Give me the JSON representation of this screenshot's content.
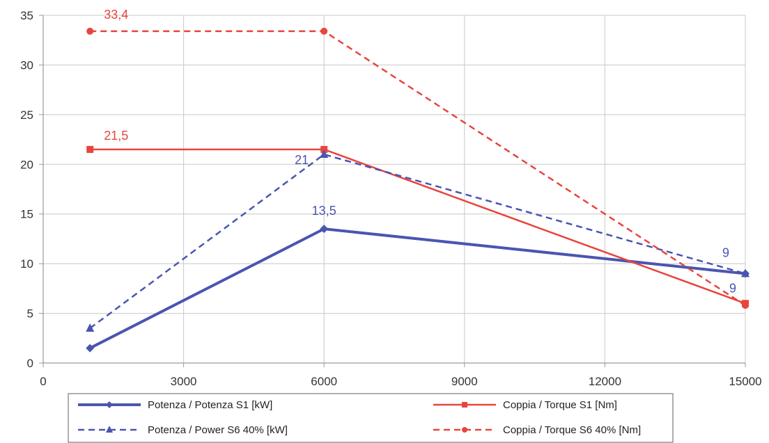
{
  "chart_data": {
    "type": "line",
    "xlim": [
      0,
      15000
    ],
    "ylim": [
      0,
      35
    ],
    "x_ticks": [
      "0",
      "3000",
      "6000",
      "9000",
      "12000",
      "15000"
    ],
    "y_ticks": [
      "0",
      "5",
      "10",
      "15",
      "20",
      "25",
      "30",
      "35"
    ],
    "grid": true,
    "legend_position": "bottom",
    "series": [
      {
        "name": "Potenza / Potenza S1 [kW]",
        "x": [
          1000,
          6000,
          15000
        ],
        "values": [
          1.5,
          13.5,
          9
        ],
        "color": "#4a55b0",
        "dash": "solid",
        "marker": "diamond",
        "width": 4
      },
      {
        "name": "Coppia / Torque S1 [Nm]",
        "x": [
          1000,
          6000,
          15000
        ],
        "values": [
          21.5,
          21.5,
          6
        ],
        "color": "#e8453c",
        "dash": "solid",
        "marker": "square",
        "width": 2.5
      },
      {
        "name": "Potenza / Power S6 40% [kW]",
        "x": [
          1000,
          6000,
          15000
        ],
        "values": [
          3.5,
          21,
          9
        ],
        "color": "#4a55b0",
        "dash": "dashed",
        "marker": "triangle",
        "width": 2.5
      },
      {
        "name": "Coppia / Torque S6 40% [Nm]",
        "x": [
          1000,
          6000,
          15000
        ],
        "values": [
          33.4,
          33.4,
          5.8
        ],
        "color": "#e8453c",
        "dash": "dashed",
        "marker": "circle",
        "width": 2.5
      }
    ],
    "data_labels": [
      {
        "text": "33,4",
        "x": 1000,
        "y": 33.4,
        "color": "#e8453c"
      },
      {
        "text": "21,5",
        "x": 1000,
        "y": 21.5,
        "color": "#e8453c"
      },
      {
        "text": "21",
        "x": 6000,
        "y": 21,
        "color": "#4a55b0"
      },
      {
        "text": "13,5",
        "x": 6000,
        "y": 13.5,
        "color": "#4a55b0"
      },
      {
        "text": "9",
        "x": 15000,
        "y": 9,
        "color": "#4a55b0"
      },
      {
        "text": "9",
        "x": 15000,
        "y": 6,
        "color": "#4a55b0"
      }
    ]
  }
}
